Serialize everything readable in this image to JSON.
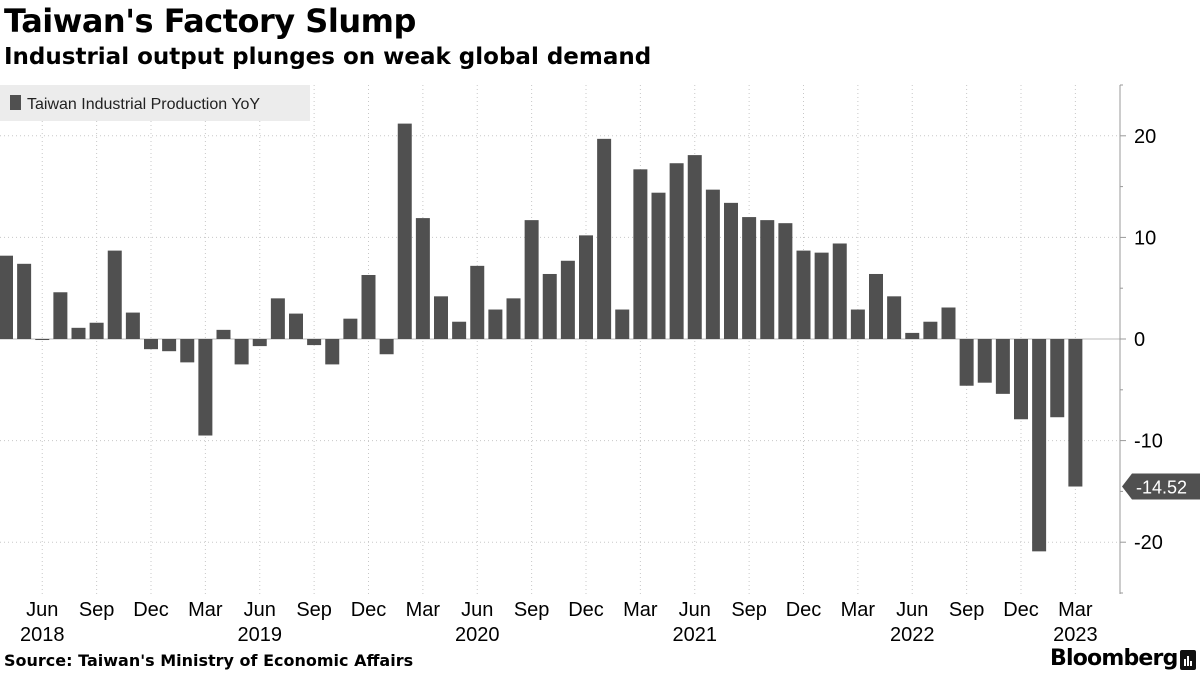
{
  "header": {
    "title": "Taiwan's Factory Slump",
    "subtitle": "Industrial output plunges on weak global demand"
  },
  "footer": {
    "source": "Source: Taiwan's Ministry of Economic Affairs",
    "brand": "Bloomberg"
  },
  "colors": {
    "bar": "#505050",
    "grid": "#c8c8c8",
    "legend_bg": "#ececec",
    "callout_bg": "#505050"
  },
  "chart_data": {
    "type": "bar",
    "title": "Taiwan's Factory Slump",
    "subtitle": "Industrial output plunges on weak global demand",
    "series_name": "Taiwan Industrial Production YoY",
    "legend_position": "top-left",
    "grid": true,
    "ylim": [
      -25,
      25
    ],
    "yticks": [
      20,
      10,
      0,
      -10,
      -20
    ],
    "ytick_labels": [
      "20",
      "10",
      "0",
      "-10",
      "-20"
    ],
    "x": [
      "2018-04",
      "2018-05",
      "2018-06",
      "2018-07",
      "2018-08",
      "2018-09",
      "2018-10",
      "2018-11",
      "2018-12",
      "2019-01",
      "2019-02",
      "2019-03",
      "2019-04",
      "2019-05",
      "2019-06",
      "2019-07",
      "2019-08",
      "2019-09",
      "2019-10",
      "2019-11",
      "2019-12",
      "2020-01",
      "2020-02",
      "2020-03",
      "2020-04",
      "2020-05",
      "2020-06",
      "2020-07",
      "2020-08",
      "2020-09",
      "2020-10",
      "2020-11",
      "2020-12",
      "2021-01",
      "2021-02",
      "2021-03",
      "2021-04",
      "2021-05",
      "2021-06",
      "2021-07",
      "2021-08",
      "2021-09",
      "2021-10",
      "2021-11",
      "2021-12",
      "2022-01",
      "2022-02",
      "2022-03",
      "2022-04",
      "2022-05",
      "2022-06",
      "2022-07",
      "2022-08",
      "2022-09",
      "2022-10",
      "2022-11",
      "2022-12",
      "2023-01",
      "2023-02",
      "2023-03"
    ],
    "values": [
      8.2,
      7.4,
      -0.1,
      4.6,
      1.1,
      1.6,
      8.7,
      2.6,
      -1.0,
      -1.2,
      -2.3,
      -9.5,
      0.9,
      -2.5,
      -0.7,
      4.0,
      2.5,
      -0.6,
      -2.5,
      2.0,
      6.3,
      -1.5,
      21.2,
      11.9,
      4.2,
      1.7,
      7.2,
      2.9,
      4.0,
      11.7,
      6.4,
      7.7,
      10.2,
      19.7,
      2.9,
      16.7,
      14.4,
      17.3,
      18.1,
      14.7,
      13.4,
      12.0,
      11.7,
      11.4,
      8.7,
      8.5,
      9.4,
      2.9,
      6.4,
      4.2,
      0.6,
      1.7,
      3.1,
      -4.6,
      -4.3,
      -5.4,
      -7.9,
      -20.9,
      -7.7,
      -14.52
    ],
    "xtick_labels": [
      {
        "index": 2,
        "label": "Jun"
      },
      {
        "index": 5,
        "label": "Sep"
      },
      {
        "index": 8,
        "label": "Dec"
      },
      {
        "index": 11,
        "label": "Mar"
      },
      {
        "index": 14,
        "label": "Jun"
      },
      {
        "index": 17,
        "label": "Sep"
      },
      {
        "index": 20,
        "label": "Dec"
      },
      {
        "index": 23,
        "label": "Mar"
      },
      {
        "index": 26,
        "label": "Jun"
      },
      {
        "index": 29,
        "label": "Sep"
      },
      {
        "index": 32,
        "label": "Dec"
      },
      {
        "index": 35,
        "label": "Mar"
      },
      {
        "index": 38,
        "label": "Jun"
      },
      {
        "index": 41,
        "label": "Sep"
      },
      {
        "index": 44,
        "label": "Dec"
      },
      {
        "index": 47,
        "label": "Mar"
      },
      {
        "index": 50,
        "label": "Jun"
      },
      {
        "index": 53,
        "label": "Sep"
      },
      {
        "index": 56,
        "label": "Dec"
      },
      {
        "index": 59,
        "label": "Mar"
      }
    ],
    "year_labels": [
      {
        "index": 2,
        "label": "2018"
      },
      {
        "index": 14,
        "label": "2019"
      },
      {
        "index": 26,
        "label": "2020"
      },
      {
        "index": 38,
        "label": "2021"
      },
      {
        "index": 50,
        "label": "2022"
      },
      {
        "index": 59,
        "label": "2023"
      }
    ],
    "last_value_label": "-14.52"
  }
}
